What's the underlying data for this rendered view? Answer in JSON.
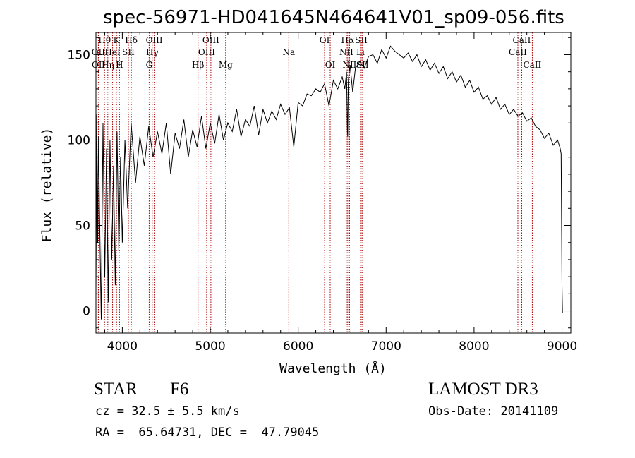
{
  "chart_data": {
    "type": "line",
    "title": "spec-56971-HD041645N464641V01_sp09-056.fits",
    "xlabel": "Wavelength (Å)",
    "ylabel": "Flux (relative)",
    "xlim": [
      3700,
      9100
    ],
    "ylim": [
      -13,
      163
    ],
    "xticks": [
      4000,
      5000,
      6000,
      7000,
      8000,
      9000
    ],
    "yticks": [
      0,
      50,
      100,
      150
    ],
    "series": [
      {
        "name": "flux",
        "x": [
          3700,
          3710,
          3720,
          3730,
          3740,
          3760,
          3780,
          3800,
          3820,
          3840,
          3860,
          3880,
          3900,
          3920,
          3940,
          3960,
          3980,
          4000,
          4030,
          4060,
          4100,
          4150,
          4200,
          4250,
          4300,
          4350,
          4400,
          4450,
          4500,
          4550,
          4600,
          4650,
          4700,
          4750,
          4800,
          4850,
          4900,
          4950,
          5000,
          5050,
          5100,
          5150,
          5200,
          5250,
          5300,
          5350,
          5400,
          5450,
          5500,
          5550,
          5600,
          5650,
          5700,
          5750,
          5800,
          5850,
          5900,
          5950,
          6000,
          6050,
          6100,
          6150,
          6200,
          6250,
          6300,
          6350,
          6400,
          6450,
          6500,
          6530,
          6550,
          6560,
          6563,
          6570,
          6590,
          6620,
          6650,
          6700,
          6750,
          6800,
          6850,
          6900,
          6950,
          7000,
          7050,
          7100,
          7150,
          7200,
          7250,
          7300,
          7350,
          7400,
          7450,
          7500,
          7550,
          7600,
          7650,
          7700,
          7750,
          7800,
          7850,
          7900,
          7950,
          8000,
          8050,
          8100,
          8150,
          8200,
          8250,
          8300,
          8350,
          8400,
          8450,
          8500,
          8550,
          8600,
          8650,
          8700,
          8750,
          8800,
          8850,
          8900,
          8950,
          8980,
          8990,
          9000,
          9005
        ],
        "y": [
          10,
          115,
          40,
          102,
          60,
          -5,
          110,
          20,
          95,
          5,
          100,
          30,
          85,
          15,
          105,
          35,
          90,
          40,
          100,
          60,
          110,
          75,
          102,
          85,
          108,
          90,
          105,
          92,
          110,
          80,
          104,
          95,
          112,
          90,
          106,
          96,
          114,
          95,
          110,
          98,
          115,
          100,
          110,
          105,
          118,
          102,
          112,
          108,
          120,
          103,
          118,
          110,
          117,
          112,
          121,
          115,
          119,
          96,
          122,
          120,
          127,
          126,
          130,
          128,
          133,
          120,
          135,
          130,
          137,
          130,
          140,
          105,
          102,
          135,
          144,
          128,
          142,
          146,
          142,
          149,
          150,
          145,
          153,
          148,
          155,
          152,
          150,
          148,
          151,
          146,
          150,
          143,
          147,
          141,
          145,
          139,
          143,
          136,
          140,
          134,
          138,
          131,
          135,
          128,
          131,
          124,
          126,
          121,
          125,
          118,
          121,
          115,
          118,
          114,
          116,
          111,
          113,
          108,
          106,
          101,
          104,
          97,
          100,
          95,
          92,
          15,
          -1
        ]
      }
    ],
    "spectral_lines": [
      {
        "label": "Hθ",
        "wavelength": 3798,
        "row": 1
      },
      {
        "label": "Hη",
        "wavelength": 3835,
        "row": 3
      },
      {
        "label": "OII",
        "wavelength": 3727,
        "row": 2
      },
      {
        "label": "OII",
        "wavelength": 3729,
        "row": 3
      },
      {
        "label": "HeI",
        "wavelength": 3889,
        "row": 2
      },
      {
        "label": "K",
        "wavelength": 3934,
        "row": 1
      },
      {
        "label": "H",
        "wavelength": 3968,
        "row": 3
      },
      {
        "label": "SII",
        "wavelength": 4069,
        "row": 2
      },
      {
        "label": "Hδ",
        "wavelength": 4102,
        "row": 1
      },
      {
        "label": "OIII",
        "wavelength": 4363,
        "row": 1
      },
      {
        "label": "Hγ",
        "wavelength": 4340,
        "row": 2
      },
      {
        "label": "G",
        "wavelength": 4305,
        "row": 3
      },
      {
        "label": "Hβ",
        "wavelength": 4861,
        "row": 3
      },
      {
        "label": "OIII",
        "wavelength": 5007,
        "row": 1
      },
      {
        "label": "OIII",
        "wavelength": 4959,
        "row": 2
      },
      {
        "label": "Mg",
        "wavelength": 5175,
        "row": 3
      },
      {
        "label": "Na",
        "wavelength": 5893,
        "row": 2
      },
      {
        "label": "OI",
        "wavelength": 6300,
        "row": 1
      },
      {
        "label": "OI",
        "wavelength": 6364,
        "row": 3
      },
      {
        "label": "Hα",
        "wavelength": 6563,
        "row": 1
      },
      {
        "label": "NII",
        "wavelength": 6548,
        "row": 2
      },
      {
        "label": "NII",
        "wavelength": 6584,
        "row": 3
      },
      {
        "label": "SII",
        "wavelength": 6717,
        "row": 1
      },
      {
        "label": "Li",
        "wavelength": 6708,
        "row": 2
      },
      {
        "label": "SII",
        "wavelength": 6731,
        "row": 3
      },
      {
        "label": "CaII",
        "wavelength": 8542,
        "row": 1
      },
      {
        "label": "CaII",
        "wavelength": 8498,
        "row": 2
      },
      {
        "label": "CaII",
        "wavelength": 8662,
        "row": 3
      }
    ]
  },
  "info": {
    "object_class": "STAR",
    "subclass": "F6",
    "cz": "cz = 32.5 ± 5.5 km/s",
    "coords": "RA =  65.64731, DEC =  47.79045",
    "survey": "LAMOST DR3",
    "obs_date": "Obs-Date: 20141109"
  },
  "colors": {
    "axis": "#000000",
    "spectrum": "#000000",
    "line_markers": "#aa0000"
  }
}
